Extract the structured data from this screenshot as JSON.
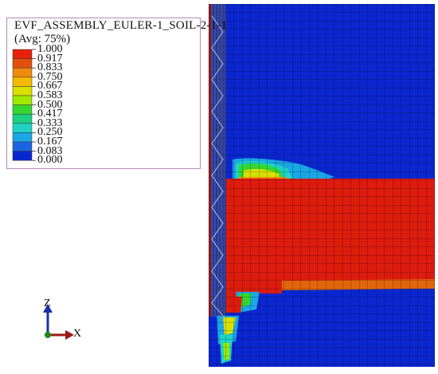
{
  "legend": {
    "title": "EVF_ASSEMBLY_EULER-1_SOIL-2-1-1",
    "subtitle": "(Avg: 75%)",
    "levels": [
      "1.000",
      "0.917",
      "0.833",
      "0.750",
      "0.667",
      "0.583",
      "0.500",
      "0.417",
      "0.333",
      "0.250",
      "0.167",
      "0.083",
      "0.000"
    ],
    "colors": [
      "#e8210d",
      "#e24f0d",
      "#ef8a0a",
      "#f3b800",
      "#d9e000",
      "#9fea00",
      "#35d62f",
      "#1ed082",
      "#1fd3c4",
      "#1aa7e5",
      "#1a65e2",
      "#0a27cf"
    ]
  },
  "triad": {
    "z_label": "Z",
    "x_label": "X"
  },
  "colors": {
    "void": "#0a27cf",
    "filled": "#de1c0e",
    "edge_orange": "#e2650a",
    "mesh_line": "#000000"
  }
}
